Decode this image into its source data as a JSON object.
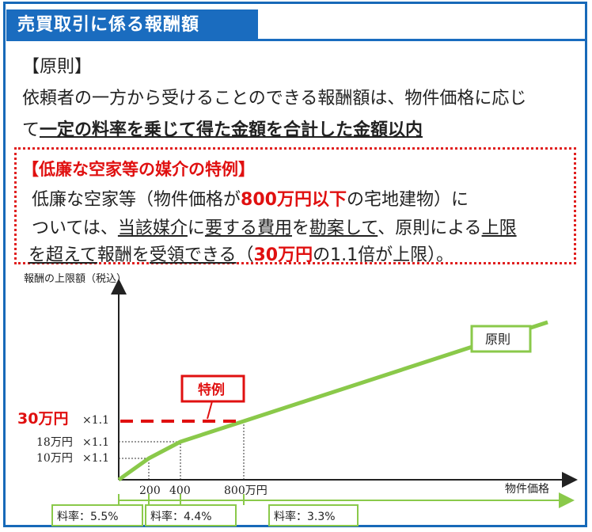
{
  "header": {
    "title": "売買取引に係る報酬額"
  },
  "principle": {
    "heading": "【原則】",
    "line1": "依頼者の一方から受けることのできる報酬額は、物件価格に応じ",
    "line2_prefix": "て",
    "line2_bold": "一定の料率を乗じて得た金額を合計した金額以内"
  },
  "special": {
    "heading": "【低廉な空家等の媒介の特例】",
    "l1_a": "低廉な空家等（物件価格が",
    "l1_b": "800万円以下",
    "l1_c": "の宅地建物）に",
    "l2_a": "ついては、",
    "l2_b": "当該媒介",
    "l2_c": "に",
    "l2_d": "要する費用",
    "l2_e": "を",
    "l2_f": "勘案して",
    "l2_g": "、原則による",
    "l2_h": "上限",
    "l3_a": "を超えて",
    "l3_b": "報酬を",
    "l3_c": "受領できる",
    "l3_d": "（",
    "l3_e": "30万円",
    "l3_f": "の1.1倍が上限）。"
  },
  "chart_data": {
    "type": "line",
    "ylabel": "報酬の上限額（税込）",
    "xlabel": "物件価格",
    "x_ticks": [
      "200",
      "400",
      "800万円"
    ],
    "y_ticks": [
      {
        "label": "10万円",
        "mult": "×1.1"
      },
      {
        "label": "18万円",
        "mult": "×1.1"
      },
      {
        "label": "30万円",
        "mult": "×1.1"
      }
    ],
    "series": [
      {
        "name": "原則",
        "x": [
          0,
          200,
          400,
          800,
          1400
        ],
        "y": [
          0,
          10,
          18,
          30,
          48
        ]
      },
      {
        "name": "特例",
        "x": [
          0,
          800
        ],
        "y": [
          30,
          30
        ]
      }
    ],
    "rates": [
      {
        "label": "料率：5.5%"
      },
      {
        "label": "料率：4.4%"
      },
      {
        "label": "料率：3.3%"
      }
    ],
    "colors": {
      "principle": "#8ac94a",
      "special": "#e01010",
      "axis": "#222222"
    }
  }
}
